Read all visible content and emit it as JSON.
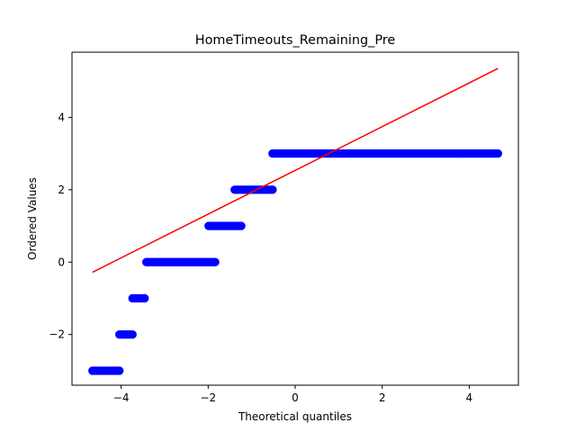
{
  "chart_data": {
    "type": "scatter",
    "title": "HomeTimeouts_Remaining_Pre",
    "xlabel": "Theoretical quantiles",
    "ylabel": "Ordered Values",
    "xlim": [
      -5.13,
      5.13
    ],
    "ylim": [
      -3.4,
      5.8
    ],
    "xticks": [
      -4,
      -2,
      0,
      2,
      4
    ],
    "yticks": [
      -2,
      0,
      2,
      4
    ],
    "xtick_labels": [
      "−4",
      "−2",
      "0",
      "2",
      "4"
    ],
    "ytick_labels": [
      "−2",
      "0",
      "2",
      "4"
    ],
    "grid": false,
    "series": [
      {
        "kind": "points",
        "color": "#0000ff",
        "segments": [
          {
            "y": -3,
            "x_start": -4.66,
            "x_end": -4.04
          },
          {
            "y": -2,
            "x_start": -4.04,
            "x_end": -3.74
          },
          {
            "y": -1,
            "x_start": -3.74,
            "x_end": -3.46
          },
          {
            "y": 0,
            "x_start": -3.42,
            "x_end": -1.84
          },
          {
            "y": 1,
            "x_start": -1.99,
            "x_end": -1.24
          },
          {
            "y": 2,
            "x_start": -1.39,
            "x_end": -0.52
          },
          {
            "y": 3,
            "x_start": -0.52,
            "x_end": 4.66
          }
        ]
      },
      {
        "kind": "fit-line",
        "color": "#ff0000",
        "x": [
          -4.66,
          4.66
        ],
        "y": [
          -0.28,
          5.35
        ]
      }
    ]
  }
}
